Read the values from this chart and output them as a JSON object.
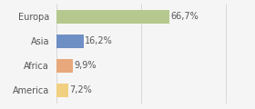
{
  "categories": [
    "Europa",
    "Asia",
    "Africa",
    "America"
  ],
  "values": [
    66.7,
    16.2,
    9.9,
    7.2
  ],
  "labels": [
    "66,7%",
    "16,2%",
    "9,9%",
    "7,2%"
  ],
  "bar_colors": [
    "#b5c98e",
    "#6e8fc4",
    "#e8a87c",
    "#f0d080"
  ],
  "background_color": "#f5f5f5",
  "xlim": [
    0,
    105
  ],
  "label_fontsize": 7,
  "category_fontsize": 7,
  "bar_height": 0.55,
  "text_color": "#555555"
}
